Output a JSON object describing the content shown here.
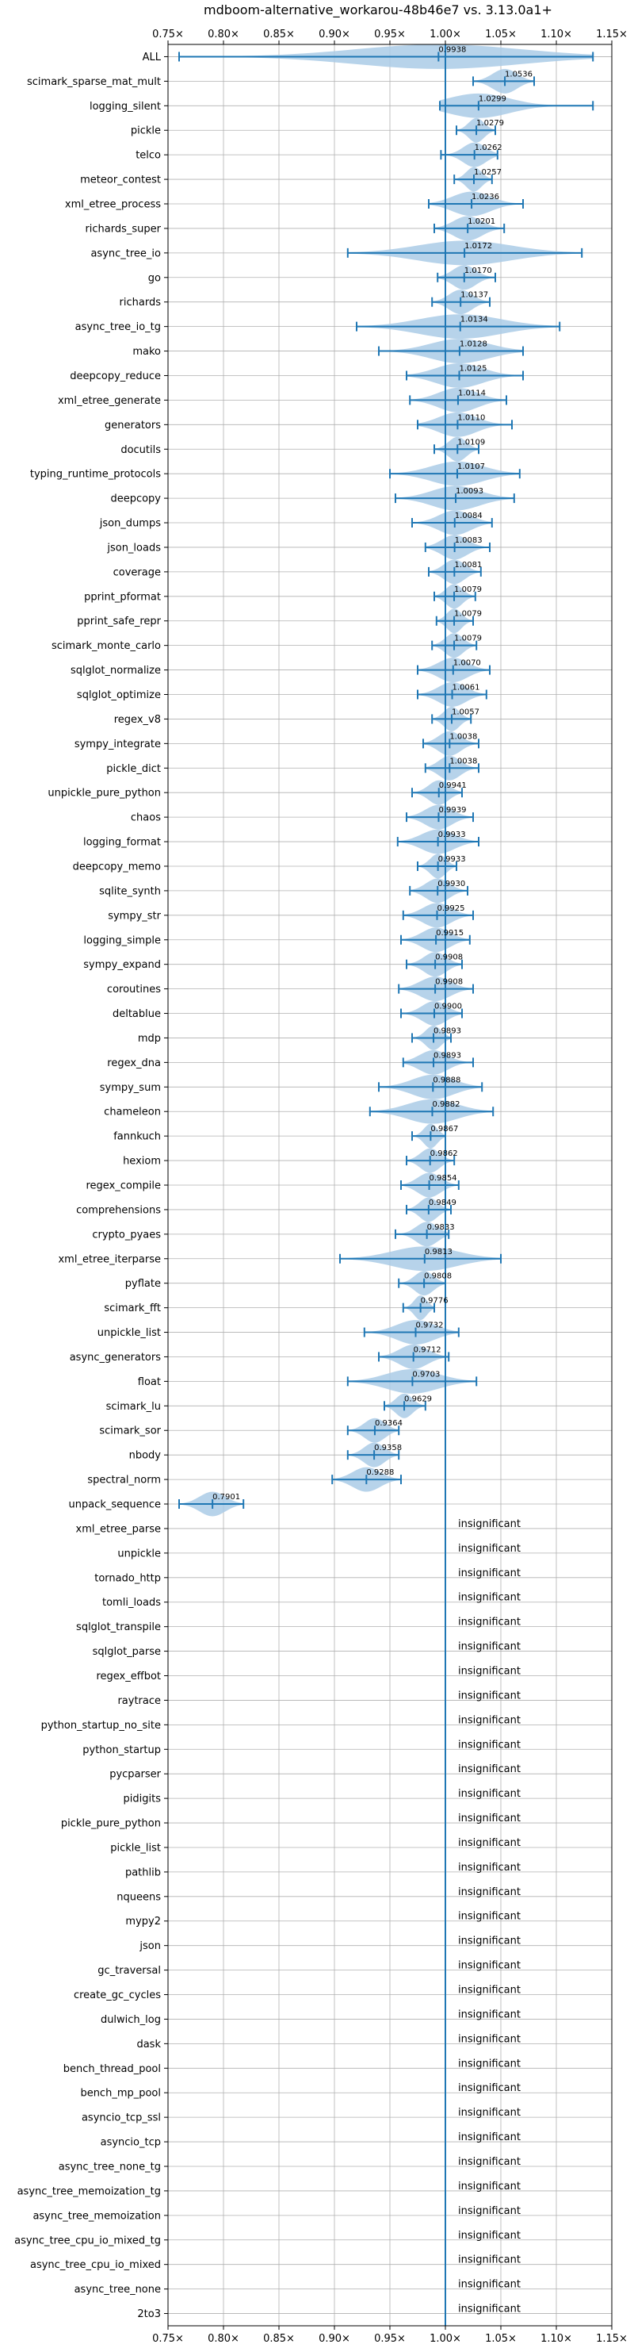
{
  "chart_data": {
    "type": "violin",
    "title": "mdboom-alternative_workarou-48b46e7 vs. 3.13.0a1+",
    "xlabel": "",
    "ylabel": "",
    "xlim": [
      0.75,
      1.15
    ],
    "xticks": [
      0.75,
      0.8,
      0.85,
      0.9,
      0.95,
      1.0,
      1.05,
      1.1,
      1.15
    ],
    "xtick_labels": [
      "0.75×",
      "0.80×",
      "0.85×",
      "0.90×",
      "0.95×",
      "1.00×",
      "1.05×",
      "1.10×",
      "1.15×"
    ],
    "reference_line": 1.0,
    "grid": true,
    "colors": {
      "violin": "#aacbe6",
      "errorbar": "#1f77b4",
      "reference": "#1f77b4",
      "grid": "#b0b0b0"
    },
    "benchmarks": [
      {
        "name": "ALL",
        "label": "0.9938",
        "mean": 0.9938,
        "low": 0.76,
        "high": 1.133
      },
      {
        "name": "scimark_sparse_mat_mult",
        "label": "1.0536",
        "mean": 1.0536,
        "low": 1.025,
        "high": 1.08
      },
      {
        "name": "logging_silent",
        "label": "1.0299",
        "mean": 1.0299,
        "low": 0.995,
        "high": 1.133
      },
      {
        "name": "pickle",
        "label": "1.0279",
        "mean": 1.0279,
        "low": 1.01,
        "high": 1.045
      },
      {
        "name": "telco",
        "label": "1.0262",
        "mean": 1.0262,
        "low": 0.996,
        "high": 1.047
      },
      {
        "name": "meteor_contest",
        "label": "1.0257",
        "mean": 1.0257,
        "low": 1.008,
        "high": 1.042
      },
      {
        "name": "xml_etree_process",
        "label": "1.0236",
        "mean": 1.0236,
        "low": 0.985,
        "high": 1.07
      },
      {
        "name": "richards_super",
        "label": "1.0201",
        "mean": 1.0201,
        "low": 0.99,
        "high": 1.053
      },
      {
        "name": "async_tree_io",
        "label": "1.0172",
        "mean": 1.0172,
        "low": 0.912,
        "high": 1.123
      },
      {
        "name": "go",
        "label": "1.0170",
        "mean": 1.017,
        "low": 0.993,
        "high": 1.045
      },
      {
        "name": "richards",
        "label": "1.0137",
        "mean": 1.0137,
        "low": 0.988,
        "high": 1.04
      },
      {
        "name": "async_tree_io_tg",
        "label": "1.0134",
        "mean": 1.0134,
        "low": 0.92,
        "high": 1.103
      },
      {
        "name": "mako",
        "label": "1.0128",
        "mean": 1.0128,
        "low": 0.94,
        "high": 1.07
      },
      {
        "name": "deepcopy_reduce",
        "label": "1.0125",
        "mean": 1.0125,
        "low": 0.965,
        "high": 1.07
      },
      {
        "name": "xml_etree_generate",
        "label": "1.0114",
        "mean": 1.0114,
        "low": 0.968,
        "high": 1.055
      },
      {
        "name": "generators",
        "label": "1.0110",
        "mean": 1.011,
        "low": 0.975,
        "high": 1.06
      },
      {
        "name": "docutils",
        "label": "1.0109",
        "mean": 1.0109,
        "low": 0.99,
        "high": 1.03
      },
      {
        "name": "typing_runtime_protocols",
        "label": "1.0107",
        "mean": 1.0107,
        "low": 0.95,
        "high": 1.067
      },
      {
        "name": "deepcopy",
        "label": "1.0093",
        "mean": 1.0093,
        "low": 0.955,
        "high": 1.062
      },
      {
        "name": "json_dumps",
        "label": "1.0084",
        "mean": 1.0084,
        "low": 0.97,
        "high": 1.042
      },
      {
        "name": "json_loads",
        "label": "1.0083",
        "mean": 1.0083,
        "low": 0.982,
        "high": 1.04
      },
      {
        "name": "coverage",
        "label": "1.0081",
        "mean": 1.0081,
        "low": 0.985,
        "high": 1.032
      },
      {
        "name": "pprint_pformat",
        "label": "1.0079",
        "mean": 1.0079,
        "low": 0.99,
        "high": 1.027
      },
      {
        "name": "pprint_safe_repr",
        "label": "1.0079",
        "mean": 1.0079,
        "low": 0.992,
        "high": 1.025
      },
      {
        "name": "scimark_monte_carlo",
        "label": "1.0079",
        "mean": 1.0079,
        "low": 0.988,
        "high": 1.028
      },
      {
        "name": "sqlglot_normalize",
        "label": "1.0070",
        "mean": 1.007,
        "low": 0.975,
        "high": 1.04
      },
      {
        "name": "sqlglot_optimize",
        "label": "1.0061",
        "mean": 1.0061,
        "low": 0.975,
        "high": 1.037
      },
      {
        "name": "regex_v8",
        "label": "1.0057",
        "mean": 1.0057,
        "low": 0.988,
        "high": 1.023
      },
      {
        "name": "sympy_integrate",
        "label": "1.0038",
        "mean": 1.0038,
        "low": 0.98,
        "high": 1.03
      },
      {
        "name": "pickle_dict",
        "label": "1.0038",
        "mean": 1.0038,
        "low": 0.982,
        "high": 1.03
      },
      {
        "name": "unpickle_pure_python",
        "label": "0.9941",
        "mean": 0.9941,
        "low": 0.97,
        "high": 1.015
      },
      {
        "name": "chaos",
        "label": "0.9939",
        "mean": 0.9939,
        "low": 0.965,
        "high": 1.025
      },
      {
        "name": "logging_format",
        "label": "0.9933",
        "mean": 0.9933,
        "low": 0.957,
        "high": 1.03
      },
      {
        "name": "deepcopy_memo",
        "label": "0.9933",
        "mean": 0.9933,
        "low": 0.975,
        "high": 1.01
      },
      {
        "name": "sqlite_synth",
        "label": "0.9930",
        "mean": 0.993,
        "low": 0.968,
        "high": 1.02
      },
      {
        "name": "sympy_str",
        "label": "0.9925",
        "mean": 0.9925,
        "low": 0.962,
        "high": 1.025
      },
      {
        "name": "logging_simple",
        "label": "0.9915",
        "mean": 0.9915,
        "low": 0.96,
        "high": 1.022
      },
      {
        "name": "sympy_expand",
        "label": "0.9908",
        "mean": 0.9908,
        "low": 0.965,
        "high": 1.015
      },
      {
        "name": "coroutines",
        "label": "0.9908",
        "mean": 0.9908,
        "low": 0.958,
        "high": 1.025
      },
      {
        "name": "deltablue",
        "label": "0.9900",
        "mean": 0.99,
        "low": 0.96,
        "high": 1.015
      },
      {
        "name": "mdp",
        "label": "0.9893",
        "mean": 0.9893,
        "low": 0.97,
        "high": 1.005
      },
      {
        "name": "regex_dna",
        "label": "0.9893",
        "mean": 0.9893,
        "low": 0.962,
        "high": 1.025
      },
      {
        "name": "sympy_sum",
        "label": "0.9888",
        "mean": 0.9888,
        "low": 0.94,
        "high": 1.033
      },
      {
        "name": "chameleon",
        "label": "0.9882",
        "mean": 0.9882,
        "low": 0.932,
        "high": 1.043
      },
      {
        "name": "fannkuch",
        "label": "0.9867",
        "mean": 0.9867,
        "low": 0.97,
        "high": 1.0
      },
      {
        "name": "hexiom",
        "label": "0.9862",
        "mean": 0.9862,
        "low": 0.965,
        "high": 1.008
      },
      {
        "name": "regex_compile",
        "label": "0.9854",
        "mean": 0.9854,
        "low": 0.96,
        "high": 1.012
      },
      {
        "name": "comprehensions",
        "label": "0.9849",
        "mean": 0.9849,
        "low": 0.965,
        "high": 1.005
      },
      {
        "name": "crypto_pyaes",
        "label": "0.9833",
        "mean": 0.9833,
        "low": 0.955,
        "high": 1.003
      },
      {
        "name": "xml_etree_iterparse",
        "label": "0.9813",
        "mean": 0.9813,
        "low": 0.905,
        "high": 1.05
      },
      {
        "name": "pyflate",
        "label": "0.9808",
        "mean": 0.9808,
        "low": 0.958,
        "high": 1.0
      },
      {
        "name": "scimark_fft",
        "label": "0.9776",
        "mean": 0.9776,
        "low": 0.962,
        "high": 0.99
      },
      {
        "name": "unpickle_list",
        "label": "0.9732",
        "mean": 0.9732,
        "low": 0.927,
        "high": 1.012
      },
      {
        "name": "async_generators",
        "label": "0.9712",
        "mean": 0.9712,
        "low": 0.94,
        "high": 1.003
      },
      {
        "name": "float",
        "label": "0.9703",
        "mean": 0.9703,
        "low": 0.912,
        "high": 1.028
      },
      {
        "name": "scimark_lu",
        "label": "0.9629",
        "mean": 0.9629,
        "low": 0.945,
        "high": 0.982
      },
      {
        "name": "scimark_sor",
        "label": "0.9364",
        "mean": 0.9364,
        "low": 0.912,
        "high": 0.958
      },
      {
        "name": "nbody",
        "label": "0.9358",
        "mean": 0.9358,
        "low": 0.912,
        "high": 0.958
      },
      {
        "name": "spectral_norm",
        "label": "0.9288",
        "mean": 0.9288,
        "low": 0.898,
        "high": 0.96
      },
      {
        "name": "unpack_sequence",
        "label": "0.7901",
        "mean": 0.7901,
        "low": 0.76,
        "high": 0.818
      },
      {
        "name": "xml_etree_parse",
        "label": "insignificant"
      },
      {
        "name": "unpickle",
        "label": "insignificant"
      },
      {
        "name": "tornado_http",
        "label": "insignificant"
      },
      {
        "name": "tomli_loads",
        "label": "insignificant"
      },
      {
        "name": "sqlglot_transpile",
        "label": "insignificant"
      },
      {
        "name": "sqlglot_parse",
        "label": "insignificant"
      },
      {
        "name": "regex_effbot",
        "label": "insignificant"
      },
      {
        "name": "raytrace",
        "label": "insignificant"
      },
      {
        "name": "python_startup_no_site",
        "label": "insignificant"
      },
      {
        "name": "python_startup",
        "label": "insignificant"
      },
      {
        "name": "pycparser",
        "label": "insignificant"
      },
      {
        "name": "pidigits",
        "label": "insignificant"
      },
      {
        "name": "pickle_pure_python",
        "label": "insignificant"
      },
      {
        "name": "pickle_list",
        "label": "insignificant"
      },
      {
        "name": "pathlib",
        "label": "insignificant"
      },
      {
        "name": "nqueens",
        "label": "insignificant"
      },
      {
        "name": "mypy2",
        "label": "insignificant"
      },
      {
        "name": "json",
        "label": "insignificant"
      },
      {
        "name": "gc_traversal",
        "label": "insignificant"
      },
      {
        "name": "create_gc_cycles",
        "label": "insignificant"
      },
      {
        "name": "dulwich_log",
        "label": "insignificant"
      },
      {
        "name": "dask",
        "label": "insignificant"
      },
      {
        "name": "bench_thread_pool",
        "label": "insignificant"
      },
      {
        "name": "bench_mp_pool",
        "label": "insignificant"
      },
      {
        "name": "asyncio_tcp_ssl",
        "label": "insignificant"
      },
      {
        "name": "asyncio_tcp",
        "label": "insignificant"
      },
      {
        "name": "async_tree_none_tg",
        "label": "insignificant"
      },
      {
        "name": "async_tree_memoization_tg",
        "label": "insignificant"
      },
      {
        "name": "async_tree_memoization",
        "label": "insignificant"
      },
      {
        "name": "async_tree_cpu_io_mixed_tg",
        "label": "insignificant"
      },
      {
        "name": "async_tree_cpu_io_mixed",
        "label": "insignificant"
      },
      {
        "name": "async_tree_none",
        "label": "insignificant"
      },
      {
        "name": "2to3",
        "label": "insignificant"
      }
    ]
  }
}
